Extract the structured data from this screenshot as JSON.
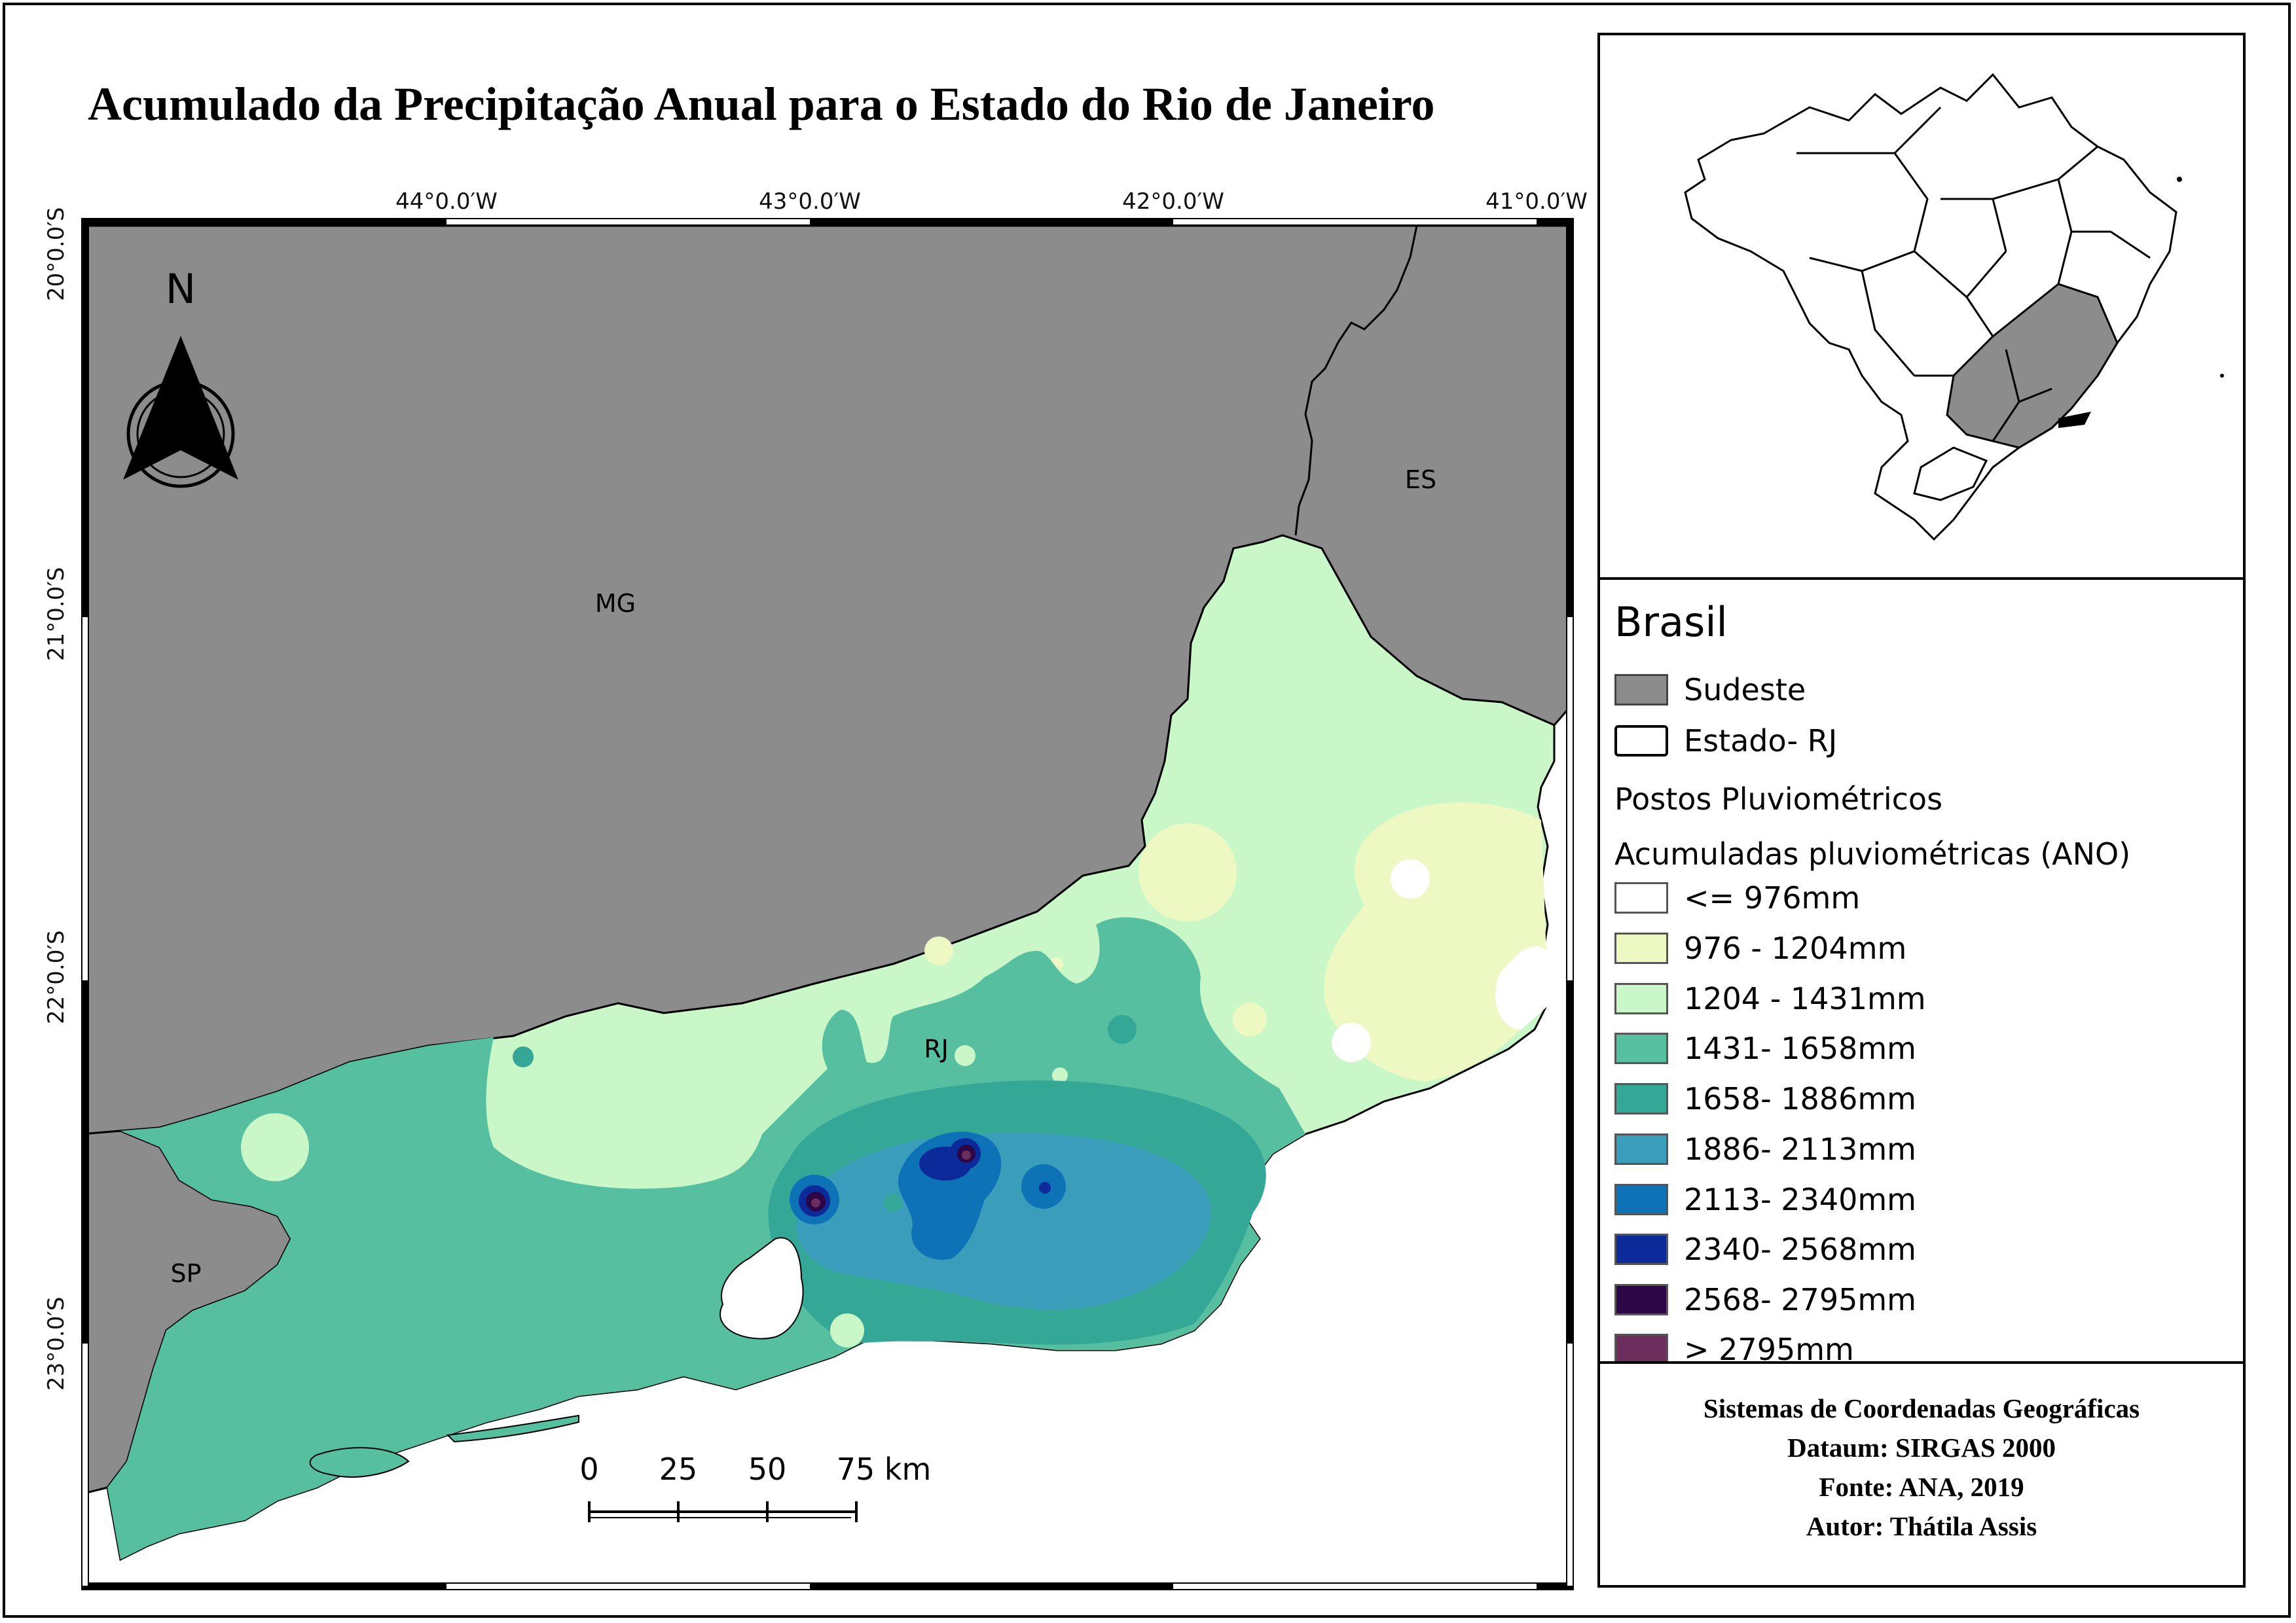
{
  "title": "Acumulado da Precipitação Anual para o Estado do Rio de Janeiro",
  "grid": {
    "lon_labels": [
      "44°0.0′W",
      "43°0.0′W",
      "42°0.0′W",
      "41°0.0′W"
    ],
    "lat_labels": [
      "20°0.0′S",
      "21°0.0′S",
      "22°0.0′S",
      "23°0.0′S"
    ]
  },
  "north_arrow": {
    "label": "N",
    "icon": "north-arrow-icon"
  },
  "states": {
    "mg": "MG",
    "es": "ES",
    "rj": "RJ",
    "sp": "SP"
  },
  "scalebar": {
    "ticks": [
      "0",
      "25",
      "50",
      "75 km"
    ]
  },
  "legend": {
    "title": "Brasil",
    "items": [
      {
        "label": "Sudeste",
        "color": "#8c8c8c"
      },
      {
        "label": "Estado- RJ",
        "color": "#ffffff"
      }
    ],
    "stations_label": "Postos Pluviométricos",
    "classes_title": "Acumuladas pluviométricas (ANO)",
    "classes": [
      {
        "label": "<= 976mm",
        "color": "#ffffff"
      },
      {
        "label": "976 - 1204mm",
        "color": "#edf8c2"
      },
      {
        "label": "1204 - 1431mm",
        "color": "#c9f7c8"
      },
      {
        "label": "1431- 1658mm",
        "color": "#55bfa0"
      },
      {
        "label": "1658- 1886mm",
        "color": "#35a796"
      },
      {
        "label": "1886- 2113mm",
        "color": "#3a9ebb"
      },
      {
        "label": "2113- 2340mm",
        "color": "#0e72b6"
      },
      {
        "label": "2340- 2568mm",
        "color": "#0d2a9a"
      },
      {
        "label": "2568- 2795mm",
        "color": "#2b0747"
      },
      {
        "label": "> 2795mm",
        "color": "#6a2d5c"
      }
    ]
  },
  "info": {
    "line1": "Sistemas de Coordenadas Geográficas",
    "line2": "Dataum: SIRGAS 2000",
    "line3": "Fonte: ANA, 2019",
    "line4": "Autor: Thátila Assis"
  }
}
